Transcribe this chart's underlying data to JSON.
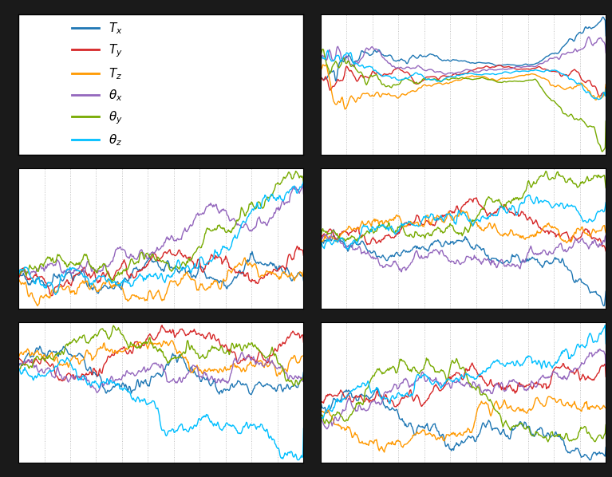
{
  "colors": [
    "#1f77b4",
    "#d62728",
    "#ff9900",
    "#9467bd",
    "#77aa00",
    "#00bfff"
  ],
  "legend_labels": [
    "$T_x$",
    "$T_y$",
    "$T_z$",
    "$\\theta_x$",
    "$\\theta_y$",
    "$\\theta_z$"
  ],
  "fig_bg": "#1a1a1a",
  "plot_bg": "#ffffff",
  "grid_color": "#aaaaaa",
  "border_color": "#000000",
  "n_points": 400,
  "seed": 7
}
